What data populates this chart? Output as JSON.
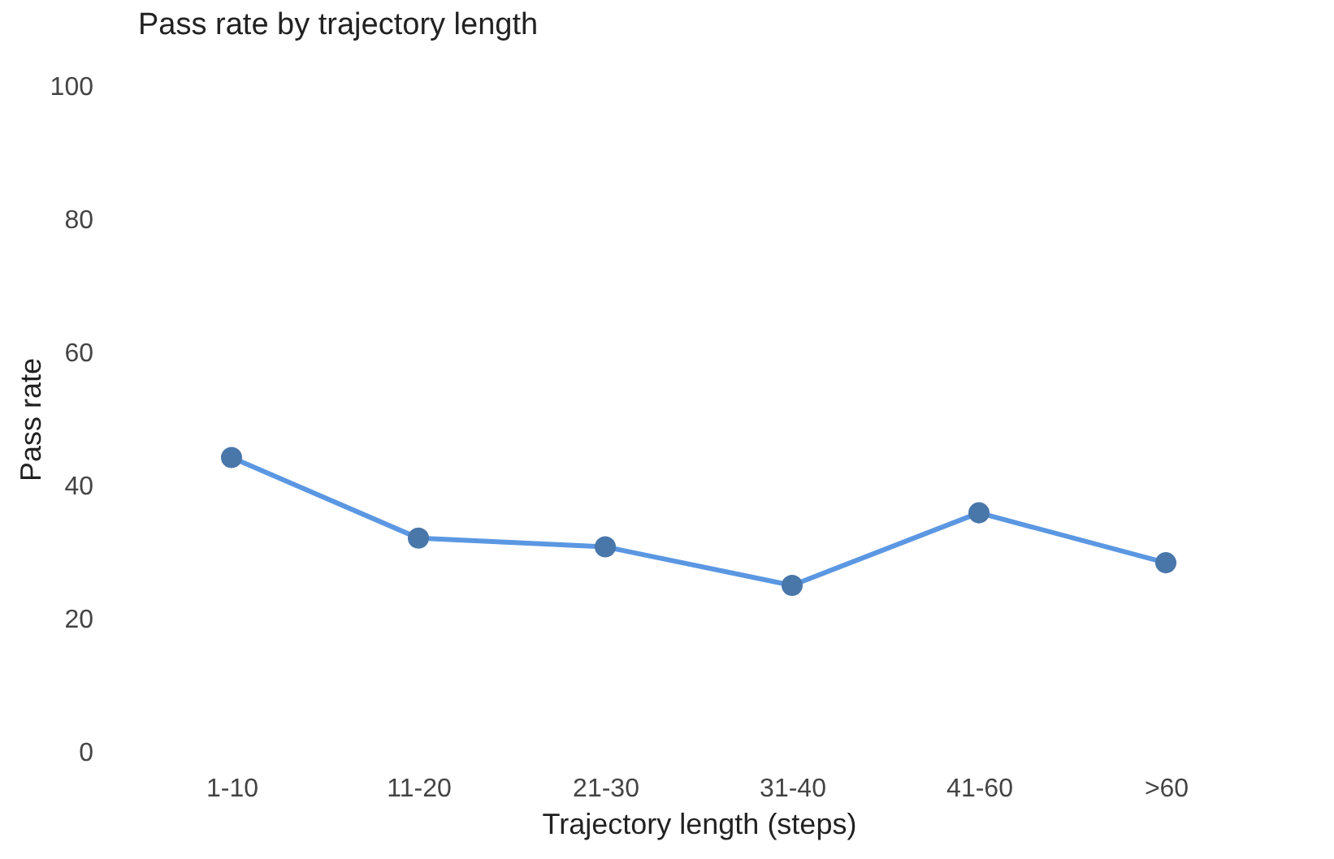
{
  "chart_data": {
    "type": "line",
    "title": "Pass rate by trajectory length",
    "xlabel": "Trajectory length (steps)",
    "ylabel": "Pass rate",
    "categories": [
      "1-10",
      "11-20",
      "21-30",
      "31-40",
      "41-60",
      ">60"
    ],
    "series": [
      {
        "color": "#5b97e2",
        "values": [
          44.2,
          32.1,
          30.8,
          25.0,
          35.9,
          28.4
        ]
      }
    ],
    "ylim": [
      0,
      100
    ],
    "yticks": [
      0,
      20,
      40,
      60,
      80,
      100
    ],
    "grid": false,
    "marker": "circle",
    "line_style": "solid"
  }
}
